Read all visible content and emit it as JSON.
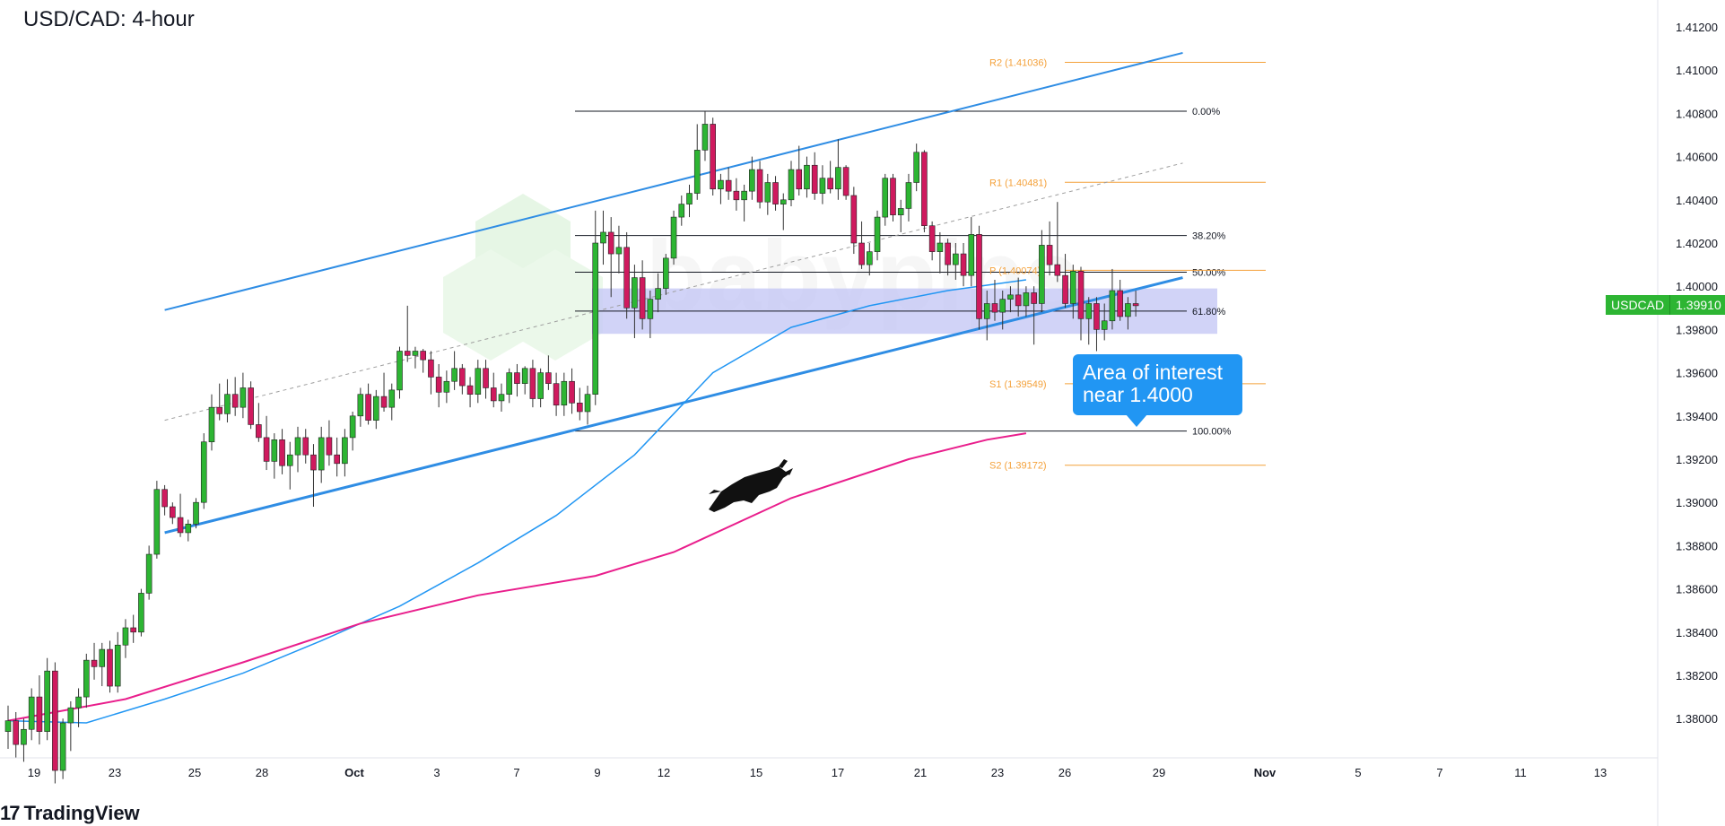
{
  "header": {
    "title": "USD/CAD: 4-hour"
  },
  "branding": {
    "logo_text": "17",
    "name": "TradingView",
    "watermark": "babypips"
  },
  "callout": {
    "line1": "Area of interest",
    "line2": "near 1.4000"
  },
  "price_tag": {
    "symbol": "USDCAD",
    "price": "1.39910"
  },
  "colors": {
    "bull": "#2db533",
    "bear": "#cf1a5e",
    "ma_fast": "#2196f3",
    "ma_slow": "#e91e8c",
    "channel": "#2f8de4",
    "pivots": "#f4a13a",
    "fib": "#131722",
    "zone": "#c5c8f5"
  },
  "chart_data": {
    "type": "candlestick",
    "title": "USD/CAD: 4-hour",
    "ylim": [
      1.3765,
      1.4135
    ],
    "y_ticks": [
      "1.41200",
      "1.41000",
      "1.40800",
      "1.40600",
      "1.40400",
      "1.40200",
      "1.40000",
      "1.39800",
      "1.39600",
      "1.39400",
      "1.39200",
      "1.39000",
      "1.38800",
      "1.38600",
      "1.38400",
      "1.38200",
      "1.38000"
    ],
    "x_ticks": [
      "19",
      "23",
      "25",
      "28",
      "Oct",
      "3",
      "7",
      "9",
      "12",
      "15",
      "17",
      "21",
      "23",
      "26",
      "29",
      "Nov",
      "5",
      "7",
      "11",
      "13"
    ],
    "candles": [
      [
        1.3794,
        1.3806,
        1.3786,
        1.3799
      ],
      [
        1.3799,
        1.3803,
        1.3782,
        1.3788
      ],
      [
        1.3788,
        1.38,
        1.378,
        1.3795
      ],
      [
        1.3795,
        1.3814,
        1.379,
        1.381
      ],
      [
        1.381,
        1.382,
        1.3788,
        1.3794
      ],
      [
        1.3794,
        1.3828,
        1.379,
        1.3822
      ],
      [
        1.3822,
        1.3826,
        1.377,
        1.3776
      ],
      [
        1.3776,
        1.38,
        1.3772,
        1.3798
      ],
      [
        1.3798,
        1.3808,
        1.3785,
        1.3805
      ],
      [
        1.3805,
        1.3814,
        1.3796,
        1.381
      ],
      [
        1.381,
        1.383,
        1.3805,
        1.3827
      ],
      [
        1.3827,
        1.3835,
        1.3818,
        1.3824
      ],
      [
        1.3824,
        1.3835,
        1.3815,
        1.3832
      ],
      [
        1.3832,
        1.3836,
        1.3812,
        1.3815
      ],
      [
        1.3815,
        1.384,
        1.3812,
        1.3834
      ],
      [
        1.3834,
        1.3846,
        1.3828,
        1.3842
      ],
      [
        1.3842,
        1.3848,
        1.3835,
        1.384
      ],
      [
        1.384,
        1.386,
        1.3838,
        1.3858
      ],
      [
        1.3858,
        1.388,
        1.3855,
        1.3876
      ],
      [
        1.3876,
        1.391,
        1.3874,
        1.3906
      ],
      [
        1.3906,
        1.3908,
        1.3894,
        1.3898
      ],
      [
        1.3898,
        1.39,
        1.389,
        1.3893
      ],
      [
        1.3893,
        1.3904,
        1.3884,
        1.3886
      ],
      [
        1.3886,
        1.3892,
        1.3882,
        1.389
      ],
      [
        1.389,
        1.3902,
        1.3888,
        1.39
      ],
      [
        1.39,
        1.3932,
        1.3897,
        1.3928
      ],
      [
        1.3928,
        1.395,
        1.3924,
        1.3944
      ],
      [
        1.3944,
        1.3955,
        1.3938,
        1.3941
      ],
      [
        1.3941,
        1.3957,
        1.3937,
        1.395
      ],
      [
        1.395,
        1.3958,
        1.394,
        1.3944
      ],
      [
        1.3944,
        1.396,
        1.3939,
        1.3953
      ],
      [
        1.3953,
        1.3956,
        1.3934,
        1.3936
      ],
      [
        1.3936,
        1.3946,
        1.3928,
        1.393
      ],
      [
        1.393,
        1.394,
        1.3915,
        1.3919
      ],
      [
        1.3919,
        1.3932,
        1.3911,
        1.3929
      ],
      [
        1.3929,
        1.3934,
        1.3913,
        1.3917
      ],
      [
        1.3917,
        1.3928,
        1.3906,
        1.3922
      ],
      [
        1.3922,
        1.3935,
        1.3914,
        1.393
      ],
      [
        1.393,
        1.3934,
        1.3918,
        1.3922
      ],
      [
        1.3922,
        1.3927,
        1.3898,
        1.3915
      ],
      [
        1.3915,
        1.3935,
        1.3909,
        1.393
      ],
      [
        1.393,
        1.3938,
        1.3917,
        1.3922
      ],
      [
        1.3922,
        1.393,
        1.3912,
        1.3918
      ],
      [
        1.3918,
        1.3934,
        1.3912,
        1.393
      ],
      [
        1.393,
        1.3942,
        1.3924,
        1.394
      ],
      [
        1.394,
        1.3953,
        1.3935,
        1.395
      ],
      [
        1.395,
        1.3955,
        1.3936,
        1.3938
      ],
      [
        1.3938,
        1.3952,
        1.3934,
        1.3949
      ],
      [
        1.3949,
        1.396,
        1.3942,
        1.3944
      ],
      [
        1.3944,
        1.3955,
        1.3938,
        1.3952
      ],
      [
        1.3952,
        1.3972,
        1.3948,
        1.397
      ],
      [
        1.397,
        1.3991,
        1.3965,
        1.3968
      ],
      [
        1.3968,
        1.3972,
        1.3962,
        1.397
      ],
      [
        1.397,
        1.3971,
        1.396,
        1.3966
      ],
      [
        1.3966,
        1.397,
        1.395,
        1.3958
      ],
      [
        1.3958,
        1.3964,
        1.3944,
        1.3951
      ],
      [
        1.3951,
        1.3961,
        1.3946,
        1.3956
      ],
      [
        1.3956,
        1.397,
        1.3952,
        1.3962
      ],
      [
        1.3962,
        1.3964,
        1.395,
        1.3954
      ],
      [
        1.3954,
        1.3958,
        1.3944,
        1.395
      ],
      [
        1.395,
        1.3966,
        1.3946,
        1.3962
      ],
      [
        1.3962,
        1.3966,
        1.3948,
        1.3953
      ],
      [
        1.3953,
        1.396,
        1.3944,
        1.3947
      ],
      [
        1.3947,
        1.3955,
        1.3942,
        1.395
      ],
      [
        1.395,
        1.3962,
        1.3946,
        1.396
      ],
      [
        1.396,
        1.3964,
        1.3949,
        1.3955
      ],
      [
        1.3955,
        1.3963,
        1.395,
        1.3962
      ],
      [
        1.3962,
        1.3966,
        1.3944,
        1.3948
      ],
      [
        1.3948,
        1.3962,
        1.3944,
        1.396
      ],
      [
        1.396,
        1.3968,
        1.3952,
        1.3955
      ],
      [
        1.3955,
        1.396,
        1.394,
        1.3945
      ],
      [
        1.3945,
        1.396,
        1.394,
        1.3956
      ],
      [
        1.3956,
        1.3962,
        1.3941,
        1.3946
      ],
      [
        1.3946,
        1.3953,
        1.3938,
        1.3942
      ],
      [
        1.3942,
        1.3954,
        1.3936,
        1.395
      ],
      [
        1.395,
        1.4035,
        1.3945,
        1.402
      ],
      [
        1.402,
        1.4035,
        1.401,
        1.4025
      ],
      [
        1.4025,
        1.4032,
        1.3995,
        1.4015
      ],
      [
        1.4015,
        1.4028,
        1.4006,
        1.4018
      ],
      [
        1.4018,
        1.4025,
        1.3985,
        1.399
      ],
      [
        1.399,
        1.401,
        1.3976,
        1.4004
      ],
      [
        1.4004,
        1.4012,
        1.398,
        1.3985
      ],
      [
        1.3985,
        1.3998,
        1.3976,
        1.3994
      ],
      [
        1.3994,
        1.4006,
        1.3988,
        1.3999
      ],
      [
        1.3999,
        1.4015,
        1.3996,
        1.4013
      ],
      [
        1.4013,
        1.4035,
        1.401,
        1.4032
      ],
      [
        1.4032,
        1.4042,
        1.4028,
        1.4038
      ],
      [
        1.4038,
        1.4047,
        1.4032,
        1.4043
      ],
      [
        1.4043,
        1.4075,
        1.404,
        1.4063
      ],
      [
        1.4063,
        1.4081,
        1.4058,
        1.4075
      ],
      [
        1.4075,
        1.4078,
        1.4042,
        1.4045
      ],
      [
        1.4045,
        1.4052,
        1.4038,
        1.4049
      ],
      [
        1.4049,
        1.4055,
        1.404,
        1.4044
      ],
      [
        1.4044,
        1.405,
        1.4035,
        1.404
      ],
      [
        1.404,
        1.4047,
        1.403,
        1.4044
      ],
      [
        1.4044,
        1.406,
        1.404,
        1.4054
      ],
      [
        1.4054,
        1.4058,
        1.4036,
        1.4039
      ],
      [
        1.4039,
        1.4052,
        1.4033,
        1.4048
      ],
      [
        1.4048,
        1.4051,
        1.4035,
        1.4038
      ],
      [
        1.4038,
        1.4043,
        1.4026,
        1.404
      ],
      [
        1.404,
        1.4058,
        1.4037,
        1.4054
      ],
      [
        1.4054,
        1.4065,
        1.4042,
        1.4045
      ],
      [
        1.4045,
        1.406,
        1.4041,
        1.4056
      ],
      [
        1.4056,
        1.4062,
        1.404,
        1.4043
      ],
      [
        1.4043,
        1.4056,
        1.4038,
        1.405
      ],
      [
        1.405,
        1.4058,
        1.4043,
        1.4045
      ],
      [
        1.4045,
        1.4068,
        1.404,
        1.4055
      ],
      [
        1.4055,
        1.4056,
        1.404,
        1.4042
      ],
      [
        1.4042,
        1.4046,
        1.4015,
        1.402
      ],
      [
        1.402,
        1.403,
        1.4008,
        1.401
      ],
      [
        1.401,
        1.402,
        1.4005,
        1.4016
      ],
      [
        1.4016,
        1.4035,
        1.4012,
        1.4032
      ],
      [
        1.4032,
        1.4052,
        1.4028,
        1.405
      ],
      [
        1.405,
        1.4052,
        1.403,
        1.4033
      ],
      [
        1.4033,
        1.404,
        1.4025,
        1.4036
      ],
      [
        1.4036,
        1.4052,
        1.403,
        1.4048
      ],
      [
        1.4048,
        1.4066,
        1.4044,
        1.4062
      ],
      [
        1.4062,
        1.4063,
        1.4025,
        1.4028
      ],
      [
        1.4028,
        1.403,
        1.4012,
        1.4016
      ],
      [
        1.4016,
        1.4025,
        1.4006,
        1.402
      ],
      [
        1.402,
        1.4022,
        1.4005,
        1.401
      ],
      [
        1.401,
        1.402,
        1.4003,
        1.4015
      ],
      [
        1.4015,
        1.402,
        1.4,
        1.4005
      ],
      [
        1.4005,
        1.4032,
        1.4,
        1.4024
      ],
      [
        1.4024,
        1.4028,
        1.398,
        1.3985
      ],
      [
        1.3985,
        1.3998,
        1.3975,
        1.3992
      ],
      [
        1.3992,
        1.4003,
        1.3984,
        1.3988
      ],
      [
        1.3988,
        1.3998,
        1.398,
        1.3994
      ],
      [
        1.3994,
        1.4,
        1.3988,
        1.3996
      ],
      [
        1.3996,
        1.4004,
        1.3986,
        1.3991
      ],
      [
        1.3991,
        1.4,
        1.3986,
        1.3997
      ],
      [
        1.3997,
        1.4,
        1.3973,
        1.3992
      ],
      [
        1.3992,
        1.4026,
        1.3988,
        1.4019
      ],
      [
        1.4019,
        1.403,
        1.4005,
        1.401
      ],
      [
        1.401,
        1.4039,
        1.4002,
        1.4005
      ],
      [
        1.4005,
        1.4015,
        1.399,
        1.3992
      ],
      [
        1.3992,
        1.401,
        1.3985,
        1.4007
      ],
      [
        1.4007,
        1.4009,
        1.3975,
        1.3985
      ],
      [
        1.3985,
        1.3995,
        1.3973,
        1.3992
      ],
      [
        1.3992,
        1.3995,
        1.397,
        1.398
      ],
      [
        1.398,
        1.3992,
        1.3975,
        1.3984
      ],
      [
        1.3984,
        1.4008,
        1.398,
        1.3998
      ],
      [
        1.3998,
        1.4003,
        1.3984,
        1.3986
      ],
      [
        1.3986,
        1.3995,
        1.398,
        1.3992
      ],
      [
        1.3992,
        1.3998,
        1.3986,
        1.3991
      ]
    ],
    "sma_fast": [
      [
        0,
        1.3799
      ],
      [
        10,
        1.3798
      ],
      [
        20,
        1.3809
      ],
      [
        30,
        1.3821
      ],
      [
        40,
        1.3836
      ],
      [
        50,
        1.3852
      ],
      [
        60,
        1.3872
      ],
      [
        70,
        1.3894
      ],
      [
        80,
        1.3922
      ],
      [
        90,
        1.396
      ],
      [
        100,
        1.3981
      ],
      [
        110,
        1.3991
      ],
      [
        120,
        1.3998
      ],
      [
        130,
        1.4003
      ]
    ],
    "sma_slow": [
      [
        0,
        1.3799
      ],
      [
        15,
        1.3809
      ],
      [
        30,
        1.3826
      ],
      [
        45,
        1.3844
      ],
      [
        60,
        1.3857
      ],
      [
        75,
        1.3866
      ],
      [
        85,
        1.3877
      ],
      [
        100,
        1.3902
      ],
      [
        115,
        1.392
      ],
      [
        125,
        1.3929
      ],
      [
        130,
        1.3932
      ]
    ],
    "channel_lower": [
      [
        20,
        1.3886
      ],
      [
        150,
        1.4004
      ]
    ],
    "channel_upper": [
      [
        20,
        1.3989
      ],
      [
        150,
        1.4108
      ]
    ],
    "channel_mid": [
      [
        20,
        1.3938
      ],
      [
        150,
        1.4057
      ]
    ],
    "fibonacci": [
      {
        "label": "0.00%",
        "price": 1.4081
      },
      {
        "label": "38.20%",
        "price": 1.40235
      },
      {
        "label": "50.00%",
        "price": 1.40065
      },
      {
        "label": "61.80%",
        "price": 1.39885
      },
      {
        "label": "100.00%",
        "price": 1.3933
      }
    ],
    "pivots": [
      {
        "label": "R2 (1.41036)",
        "price": 1.41036
      },
      {
        "label": "R1 (1.40481)",
        "price": 1.40481
      },
      {
        "label": "P (1.40074)",
        "price": 1.40074
      },
      {
        "label": "S1 (1.39549)",
        "price": 1.39549
      },
      {
        "label": "S2 (1.39172)",
        "price": 1.39172
      }
    ],
    "zone": [
      1.3978,
      1.3999
    ]
  }
}
